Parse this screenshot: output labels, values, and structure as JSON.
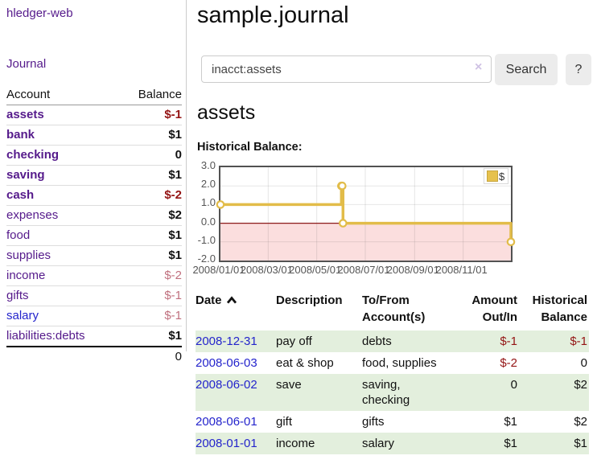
{
  "colors": {
    "link_visited_purple": "#551A8B",
    "link_blue": "#2424cc",
    "negative_red": "#941414",
    "negative_rose": "#c0707e",
    "row_stripe_green": "#e3efdd",
    "button_gray": "#ececec",
    "chart_gold": "#e6c14d"
  },
  "sidebar": {
    "app_title": "hledger-web",
    "nav_journal": "Journal",
    "account_header": "Account",
    "balance_header": "Balance",
    "accounts": [
      {
        "name": "assets",
        "balance": "$-1"
      },
      {
        "name": "bank",
        "balance": "$1"
      },
      {
        "name": "checking",
        "balance": "0"
      },
      {
        "name": "saving",
        "balance": "$1"
      },
      {
        "name": "cash",
        "balance": "$-2"
      },
      {
        "name": "expenses",
        "balance": "$2"
      },
      {
        "name": "food",
        "balance": "$1"
      },
      {
        "name": "supplies",
        "balance": "$1"
      },
      {
        "name": "income",
        "balance": "$-2"
      },
      {
        "name": "gifts",
        "balance": "$-1"
      },
      {
        "name": "salary",
        "balance": "$-1"
      },
      {
        "name": "liabilities:debts",
        "balance": "$1"
      }
    ],
    "total": "0"
  },
  "main": {
    "title": "sample.journal",
    "search": {
      "value": "inacct:assets",
      "clear_icon": "×",
      "search_button": "Search",
      "help_button": "?"
    },
    "account_heading": "assets",
    "chart_label": "Historical Balance:"
  },
  "chart_data": {
    "type": "line",
    "step": true,
    "title": "Historical Balance:",
    "series": [
      {
        "name": "$",
        "x": [
          "2008-01-01",
          "2008-06-01",
          "2008-06-02",
          "2008-06-03",
          "2008-12-31"
        ],
        "y": [
          1,
          2,
          2,
          0,
          -1
        ]
      }
    ],
    "xlim": [
      "2008-01-01",
      "2008-12-31"
    ],
    "ylim": [
      -2,
      3
    ],
    "y_ticks": [
      3,
      2,
      1,
      0,
      -1,
      -2
    ],
    "y_tick_labels": [
      "3.0",
      "2.0",
      "1.0",
      "0.0",
      "-1.0",
      "-2.0"
    ],
    "x_ticks": [
      "2008-01-01",
      "2008-03-01",
      "2008-05-01",
      "2008-07-01",
      "2008-09-01",
      "2008-11-01"
    ],
    "x_tick_labels": [
      "2008/01/01",
      "2008/03/01",
      "2008/05/01",
      "2008/07/01",
      "2008/09/01",
      "2008/11/01"
    ],
    "legend": {
      "label": "$",
      "position": "top-right"
    },
    "grid": true,
    "line_color": "#e2bc49",
    "marker_fill": "#ffffff",
    "negative_region_fill": "#fbdede",
    "zero_line_color": "#8b1a1a"
  },
  "register": {
    "headers": {
      "date": "Date",
      "description": "Description",
      "accounts": "To/From Account(s)",
      "amount": "Amount Out/In",
      "balance": "Historical Balance"
    },
    "rows": [
      {
        "date": "2008-12-31",
        "description": "pay off",
        "accounts": "debts",
        "amount": "$-1",
        "balance": "$-1"
      },
      {
        "date": "2008-06-03",
        "description": "eat & shop",
        "accounts": "food, supplies",
        "amount": "$-2",
        "balance": "0"
      },
      {
        "date": "2008-06-02",
        "description": "save",
        "accounts": "saving,\nchecking",
        "amount": "0",
        "balance": "$2"
      },
      {
        "date": "2008-06-01",
        "description": "gift",
        "accounts": "gifts",
        "amount": "$1",
        "balance": "$2"
      },
      {
        "date": "2008-01-01",
        "description": "income",
        "accounts": "salary",
        "amount": "$1",
        "balance": "$1"
      }
    ]
  }
}
